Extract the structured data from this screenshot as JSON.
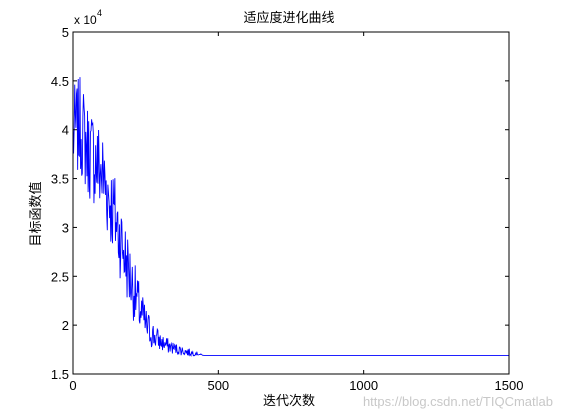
{
  "chart_data": {
    "type": "line",
    "title": "适应度进化曲线",
    "xlabel": "迭代次数",
    "ylabel": "目标函数值",
    "y_scale_label": "x 10",
    "y_scale_exponent": "4",
    "xlim": [
      0,
      1500
    ],
    "ylim": [
      1.5,
      5
    ],
    "x_ticks": [
      0,
      500,
      1000,
      1500
    ],
    "y_ticks": [
      1.5,
      2,
      2.5,
      3,
      3.5,
      4,
      4.5,
      5
    ],
    "grid": false,
    "series": [
      {
        "color": "#0000ff",
        "points": [
          [
            0,
            3.95
          ],
          [
            25,
            4.05
          ],
          [
            50,
            3.8
          ],
          [
            75,
            3.7
          ],
          [
            100,
            3.55
          ],
          [
            125,
            3.3
          ],
          [
            150,
            3.05
          ],
          [
            175,
            2.75
          ],
          [
            200,
            2.45
          ],
          [
            225,
            2.2
          ],
          [
            250,
            2.0
          ],
          [
            275,
            1.9
          ],
          [
            300,
            1.83
          ],
          [
            325,
            1.79
          ],
          [
            350,
            1.76
          ],
          [
            375,
            1.74
          ],
          [
            400,
            1.72
          ],
          [
            425,
            1.71
          ],
          [
            450,
            1.69
          ],
          [
            1500,
            1.69
          ]
        ],
        "noise_amplitude": [
          [
            0,
            0.5
          ],
          [
            100,
            0.5
          ],
          [
            150,
            0.45
          ],
          [
            200,
            0.35
          ],
          [
            250,
            0.2
          ],
          [
            300,
            0.1
          ],
          [
            350,
            0.06
          ],
          [
            400,
            0.04
          ],
          [
            450,
            0.0
          ],
          [
            1500,
            0.0
          ]
        ]
      }
    ]
  },
  "watermark": "https://blog.csdn.net/TIQCmatlab"
}
